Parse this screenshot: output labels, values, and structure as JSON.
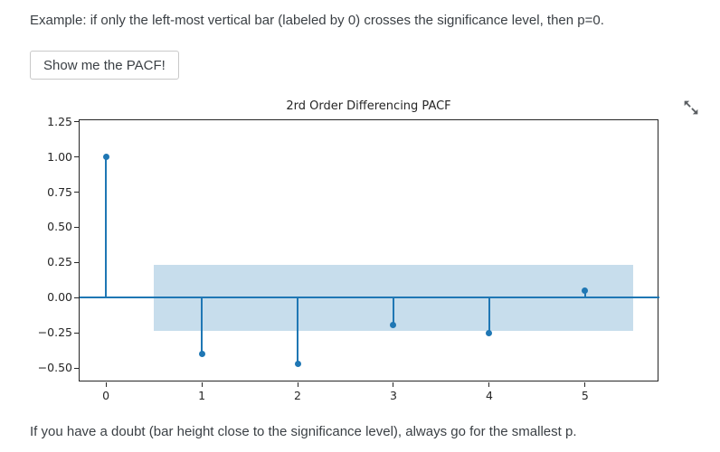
{
  "page": {
    "intro_text": "Example: if only the left-most vertical bar (labeled by 0) crosses the significance level, then p=0.",
    "button_label": "Show me the PACF!",
    "outro_text": "If you have a doubt (bar height close to the significance level), always go for the smallest p."
  },
  "chart_data": {
    "type": "stem",
    "title": "2rd Order Differencing PACF",
    "xlabel": "",
    "ylabel": "",
    "lags": [
      0,
      1,
      2,
      3,
      4,
      5
    ],
    "values": [
      1.0,
      -0.4,
      -0.47,
      -0.19,
      -0.25,
      0.05
    ],
    "confidence_band": {
      "x0": 0.5,
      "x1": 5.5,
      "y0": -0.235,
      "y1": 0.235
    },
    "xlim": [
      -0.275,
      5.775
    ],
    "ylim": [
      -0.6,
      1.26
    ],
    "xticks": [
      0,
      1,
      2,
      3,
      4,
      5
    ],
    "xtick_labels": [
      "0",
      "1",
      "2",
      "3",
      "4",
      "5"
    ],
    "yticks": [
      1.25,
      1.0,
      0.75,
      0.5,
      0.25,
      0.0,
      -0.25,
      -0.5
    ],
    "ytick_labels": [
      "1.25",
      "1.00",
      "0.75",
      "0.50",
      "0.25",
      "0.00",
      "−0.25",
      "−0.50"
    ],
    "grid": false,
    "legend": "none",
    "colors": {
      "stem": "#1f77b4",
      "band": "#c7ddec",
      "spine": "#262626"
    }
  }
}
